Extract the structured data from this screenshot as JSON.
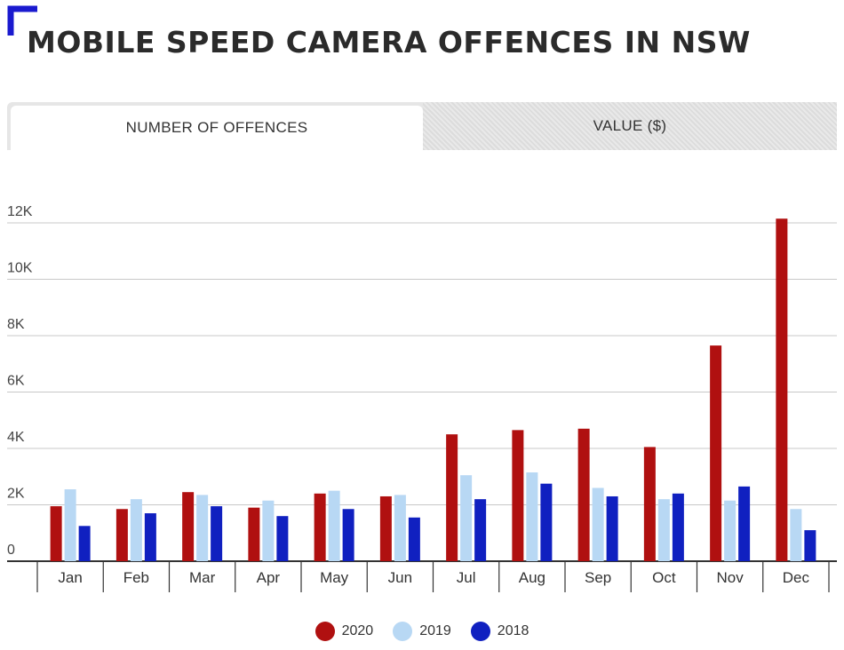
{
  "title": "MOBILE SPEED CAMERA OFFENCES IN NSW",
  "colors": {
    "accent": "#1a1acf",
    "s2020": "#b01010",
    "s2019": "#b8d8f4",
    "s2018": "#1020c0"
  },
  "tabs": [
    {
      "label": "NUMBER OF OFFENCES",
      "active": true
    },
    {
      "label": "VALUE ($)",
      "active": false
    }
  ],
  "chart_data": {
    "type": "bar",
    "categories": [
      "Jan",
      "Feb",
      "Mar",
      "Apr",
      "May",
      "Jun",
      "Jul",
      "Aug",
      "Sep",
      "Oct",
      "Nov",
      "Dec"
    ],
    "series": [
      {
        "name": "2020",
        "color": "#b01010",
        "values": [
          1950,
          1850,
          2450,
          1900,
          2400,
          2300,
          4500,
          4650,
          4700,
          4050,
          7650,
          12150
        ]
      },
      {
        "name": "2019",
        "color": "#b8d8f4",
        "values": [
          2550,
          2200,
          2350,
          2150,
          2500,
          2350,
          3050,
          3150,
          2600,
          2200,
          2150,
          1850
        ]
      },
      {
        "name": "2018",
        "color": "#1020c0",
        "values": [
          1250,
          1700,
          1950,
          1600,
          1850,
          1550,
          2200,
          2750,
          2300,
          2400,
          2650,
          1100
        ]
      }
    ],
    "yticks": [
      "0",
      "2K",
      "4K",
      "6K",
      "8K",
      "10K",
      "12K"
    ],
    "ylim": [
      0,
      12000
    ],
    "grid": true,
    "legend_position": "bottom"
  }
}
